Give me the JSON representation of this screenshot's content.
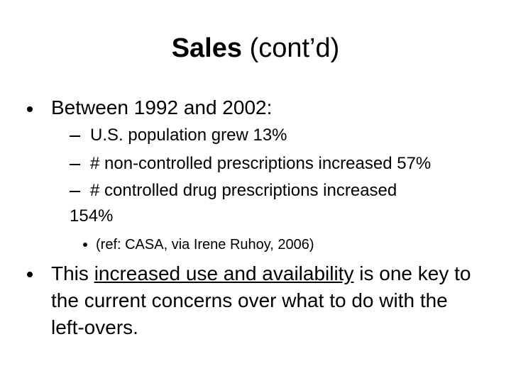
{
  "title": {
    "bold": "Sales",
    "rest": "(cont’d)"
  },
  "bullets": [
    {
      "text": "Between 1992 and 2002:",
      "items": [
        {
          "text": "U.S. population grew 13%"
        },
        {
          "text": "# non-controlled prescriptions increased 57%"
        },
        {
          "text": "# controlled drug prescriptions increased 154%",
          "items": [
            {
              "text": "(ref: CASA, via Irene Ruhoy, 2006)"
            }
          ]
        }
      ]
    },
    {
      "text_before": "This",
      "underlined": "increased use and availability",
      "text_after": "is one key to the current concerns over what to do with the left-overs."
    }
  ]
}
